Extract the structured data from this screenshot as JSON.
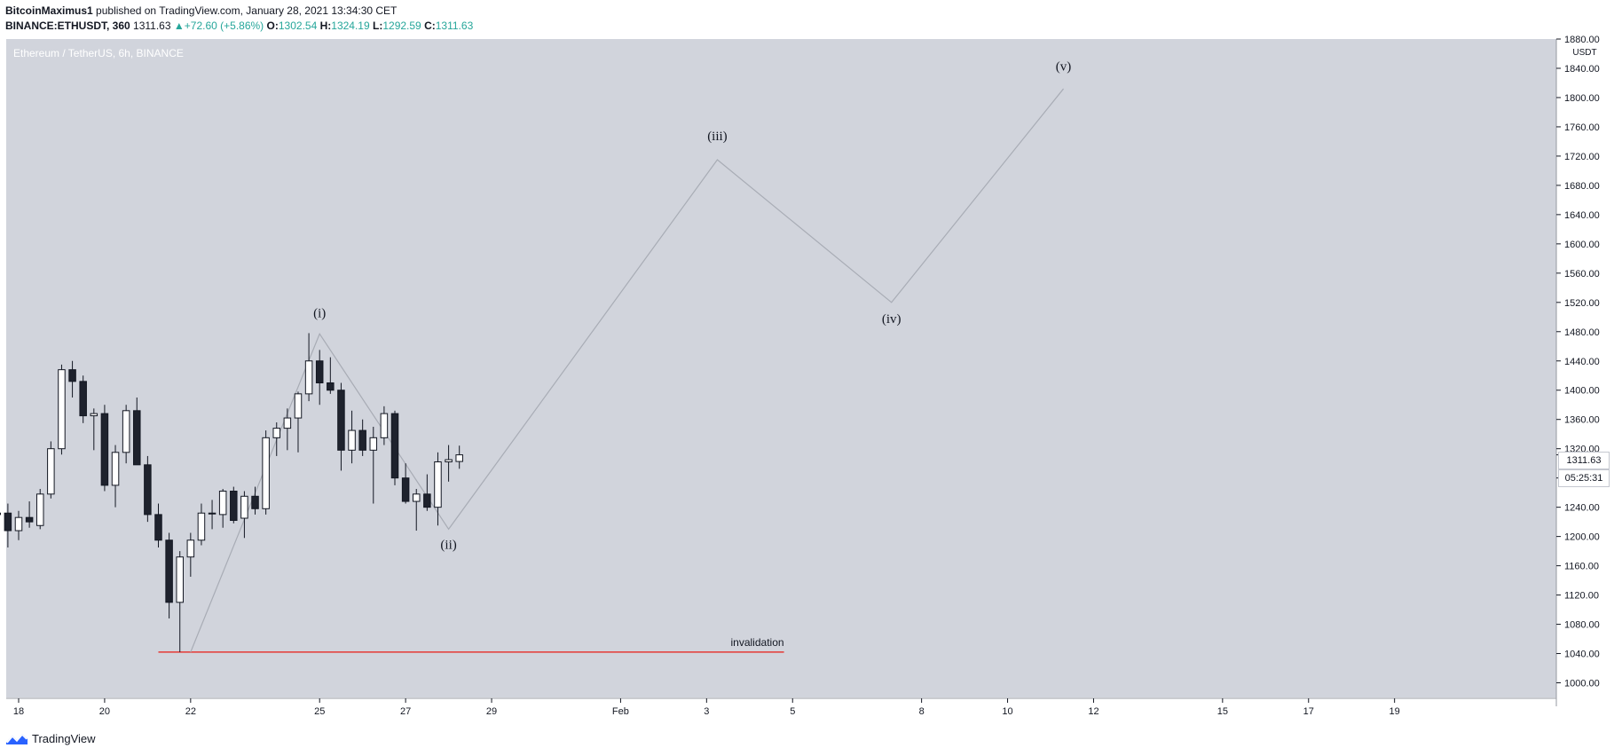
{
  "header": {
    "author": "BitcoinMaximus1",
    "published": "published on TradingView.com, January 28, 2021 13:34:30 CET",
    "symbol": "BINANCE:ETHUSDT, 360",
    "last": "1311.63",
    "change": "+72.60 (+5.86%)",
    "o_label": "O:",
    "o_value": "1302.54",
    "h_label": "H:",
    "h_value": "1324.19",
    "l_label": "L:",
    "l_value": "1292.59",
    "c_label": "C:",
    "c_value": "1311.63"
  },
  "footer": {
    "brand": "TradingView"
  },
  "price_tag": {
    "last": "1311.63",
    "countdown": "05:25:31"
  },
  "colors": {
    "plot_bg": "#d1d4dc",
    "bull": "#ffffff",
    "bear": "#1e222d",
    "invalidation": "#e53935",
    "projection": "#a8acb5"
  },
  "chart_data": {
    "type": "candlestick",
    "title": "Ethereum / TetherUS, 6h, BINANCE",
    "currency": "USDT",
    "ylim": [
      980,
      1880
    ],
    "y_ticks": [
      1000,
      1040,
      1080,
      1120,
      1160,
      1200,
      1240,
      1280,
      1320,
      1360,
      1400,
      1440,
      1480,
      1520,
      1560,
      1600,
      1640,
      1680,
      1720,
      1760,
      1800,
      1840,
      1880
    ],
    "x_ticks": [
      {
        "label": "18",
        "day": 18
      },
      {
        "label": "20",
        "day": 20
      },
      {
        "label": "22",
        "day": 22
      },
      {
        "label": "25",
        "day": 25
      },
      {
        "label": "27",
        "day": 27
      },
      {
        "label": "29",
        "day": 29
      },
      {
        "label": "Feb",
        "day": 32
      },
      {
        "label": "3",
        "day": 34
      },
      {
        "label": "5",
        "day": 36
      },
      {
        "label": "8",
        "day": 39
      },
      {
        "label": "10",
        "day": 41
      },
      {
        "label": "12",
        "day": 43
      },
      {
        "label": "15",
        "day": 46
      },
      {
        "label": "17",
        "day": 48
      },
      {
        "label": "19",
        "day": 50
      }
    ],
    "candles": [
      {
        "o": 1232,
        "h": 1268,
        "l": 1210,
        "c": 1230
      },
      {
        "o": 1232,
        "h": 1245,
        "l": 1185,
        "c": 1208
      },
      {
        "o": 1208,
        "h": 1235,
        "l": 1195,
        "c": 1226
      },
      {
        "o": 1226,
        "h": 1248,
        "l": 1212,
        "c": 1220
      },
      {
        "o": 1215,
        "h": 1265,
        "l": 1210,
        "c": 1258
      },
      {
        "o": 1258,
        "h": 1330,
        "l": 1252,
        "c": 1320
      },
      {
        "o": 1320,
        "h": 1435,
        "l": 1312,
        "c": 1428
      },
      {
        "o": 1428,
        "h": 1440,
        "l": 1390,
        "c": 1412
      },
      {
        "o": 1412,
        "h": 1420,
        "l": 1355,
        "c": 1365
      },
      {
        "o": 1365,
        "h": 1375,
        "l": 1318,
        "c": 1368
      },
      {
        "o": 1368,
        "h": 1380,
        "l": 1262,
        "c": 1270
      },
      {
        "o": 1270,
        "h": 1325,
        "l": 1240,
        "c": 1315
      },
      {
        "o": 1315,
        "h": 1380,
        "l": 1300,
        "c": 1372
      },
      {
        "o": 1372,
        "h": 1390,
        "l": 1305,
        "c": 1298
      },
      {
        "o": 1298,
        "h": 1310,
        "l": 1220,
        "c": 1230
      },
      {
        "o": 1230,
        "h": 1245,
        "l": 1185,
        "c": 1195
      },
      {
        "o": 1195,
        "h": 1205,
        "l": 1088,
        "c": 1110
      },
      {
        "o": 1110,
        "h": 1180,
        "l": 1042,
        "c": 1172
      },
      {
        "o": 1172,
        "h": 1205,
        "l": 1145,
        "c": 1195
      },
      {
        "o": 1195,
        "h": 1245,
        "l": 1188,
        "c": 1232
      },
      {
        "o": 1232,
        "h": 1250,
        "l": 1210,
        "c": 1232
      },
      {
        "o": 1230,
        "h": 1265,
        "l": 1212,
        "c": 1262
      },
      {
        "o": 1262,
        "h": 1268,
        "l": 1218,
        "c": 1222
      },
      {
        "o": 1225,
        "h": 1262,
        "l": 1198,
        "c": 1255
      },
      {
        "o": 1255,
        "h": 1268,
        "l": 1230,
        "c": 1238
      },
      {
        "o": 1238,
        "h": 1345,
        "l": 1230,
        "c": 1335
      },
      {
        "o": 1335,
        "h": 1356,
        "l": 1310,
        "c": 1348
      },
      {
        "o": 1348,
        "h": 1375,
        "l": 1318,
        "c": 1362
      },
      {
        "o": 1362,
        "h": 1398,
        "l": 1315,
        "c": 1395
      },
      {
        "o": 1395,
        "h": 1478,
        "l": 1385,
        "c": 1440
      },
      {
        "o": 1440,
        "h": 1455,
        "l": 1380,
        "c": 1410
      },
      {
        "o": 1410,
        "h": 1445,
        "l": 1395,
        "c": 1400
      },
      {
        "o": 1400,
        "h": 1410,
        "l": 1290,
        "c": 1318
      },
      {
        "o": 1318,
        "h": 1372,
        "l": 1300,
        "c": 1345
      },
      {
        "o": 1345,
        "h": 1360,
        "l": 1310,
        "c": 1318
      },
      {
        "o": 1318,
        "h": 1350,
        "l": 1245,
        "c": 1335
      },
      {
        "o": 1335,
        "h": 1378,
        "l": 1325,
        "c": 1368
      },
      {
        "o": 1368,
        "h": 1372,
        "l": 1270,
        "c": 1280
      },
      {
        "o": 1280,
        "h": 1300,
        "l": 1245,
        "c": 1248
      },
      {
        "o": 1248,
        "h": 1265,
        "l": 1208,
        "c": 1258
      },
      {
        "o": 1258,
        "h": 1285,
        "l": 1235,
        "c": 1240
      },
      {
        "o": 1240,
        "h": 1315,
        "l": 1215,
        "c": 1302
      },
      {
        "o": 1302,
        "h": 1325,
        "l": 1275,
        "c": 1305
      },
      {
        "o": 1302.54,
        "h": 1324.19,
        "l": 1292.59,
        "c": 1311.63
      }
    ],
    "candle_start_day": 17.5,
    "candles_per_day": 4,
    "wave_projection": [
      {
        "day": 22.0,
        "price": 1042
      },
      {
        "day": 25.0,
        "price": 1477
      },
      {
        "day": 28.0,
        "price": 1210
      },
      {
        "day": 34.25,
        "price": 1715
      },
      {
        "day": 38.3,
        "price": 1520
      },
      {
        "day": 42.3,
        "price": 1812
      }
    ],
    "wave_labels": [
      {
        "text": "(i)",
        "day": 25.0,
        "price": 1500
      },
      {
        "text": "(ii)",
        "day": 28.0,
        "price": 1183
      },
      {
        "text": "(iii)",
        "day": 34.25,
        "price": 1742
      },
      {
        "text": "(iv)",
        "day": 38.3,
        "price": 1492
      },
      {
        "text": "(v)",
        "day": 42.3,
        "price": 1837
      }
    ],
    "invalidation": {
      "text": "invalidation",
      "price": 1042,
      "from_day": 21.25,
      "to_day": 35.8
    }
  }
}
